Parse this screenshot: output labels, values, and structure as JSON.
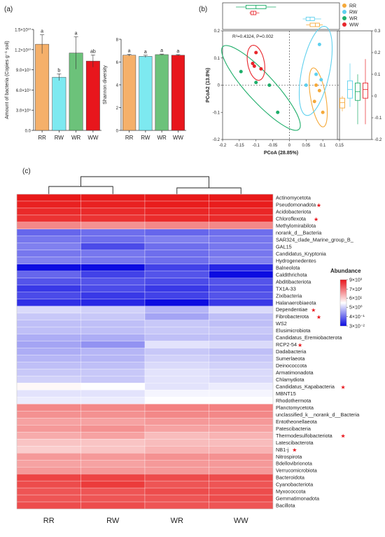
{
  "chart_data": [
    {
      "panel_label": "(a)",
      "type": "bar",
      "categories": [
        "RR",
        "RW",
        "WR",
        "WW"
      ],
      "values": [
        12800000000.0,
        7900000000.0,
        11500000000.0,
        10300000000.0
      ],
      "errors": [
        1400000000.0,
        500000000.0,
        2400000000.0,
        900000000.0
      ],
      "letters": [
        "a",
        "b",
        "a",
        "ab"
      ],
      "colors": [
        "#f5b06a",
        "#7de9f0",
        "#6cc27a",
        "#e8161c"
      ],
      "ylabel": "Amount of bacteria (Copies g⁻¹ soil)",
      "ylim": [
        0,
        15000000000.0
      ],
      "yticks": [
        "0.0",
        "3.0×10⁹",
        "6.0×10⁹",
        "9.0×10⁹",
        "1.2×10¹⁰",
        "1.5×10¹⁰"
      ]
    },
    {
      "type": "bar",
      "categories": [
        "RR",
        "RW",
        "WR",
        "WW"
      ],
      "values": [
        6.6,
        6.5,
        6.65,
        6.6
      ],
      "errors": [
        0.08,
        0.1,
        0.05,
        0.05
      ],
      "letters": [
        "a",
        "a",
        "a",
        "a"
      ],
      "colors": [
        "#f5b06a",
        "#7de9f0",
        "#6cc27a",
        "#e8161c"
      ],
      "ylabel": "Shannon diversity",
      "ylim": [
        0,
        8
      ],
      "yticks": [
        "0",
        "2",
        "4",
        "6",
        "8"
      ]
    },
    {
      "panel_label": "(b)",
      "type": "scatter",
      "xlabel": "PCoA (28.85%)",
      "ylabel": "PCoA2 (13.8%)",
      "xlim": [
        -0.2,
        0.15
      ],
      "ylim": [
        -0.2,
        0.2
      ],
      "xticks": [
        "-0.2",
        "-0.15",
        "-0.1",
        "-0.05",
        "0",
        "0.05",
        "0.1",
        "0.15"
      ],
      "yticks": [
        "-0.2",
        "-0.1",
        "0",
        "0.1",
        "0.2"
      ],
      "annotation": "R²=0.4324, P=0.002",
      "legend": [
        {
          "name": "RR",
          "color": "#f5a93a"
        },
        {
          "name": "RW",
          "color": "#5fd0ee"
        },
        {
          "name": "WR",
          "color": "#1fae6a"
        },
        {
          "name": "WW",
          "color": "#e8262c"
        }
      ],
      "series": [
        {
          "name": "RR",
          "color": "#f5a93a",
          "points": [
            [
              0.075,
              -0.06
            ],
            [
              0.08,
              0.0
            ],
            [
              0.09,
              -0.02
            ],
            [
              0.1,
              -0.1
            ]
          ]
        },
        {
          "name": "RW",
          "color": "#5fd0ee",
          "points": [
            [
              0.05,
              0.0
            ],
            [
              0.08,
              0.04
            ],
            [
              0.09,
              0.15
            ],
            [
              0.095,
              0.02
            ]
          ]
        },
        {
          "name": "WR",
          "color": "#1fae6a",
          "points": [
            [
              -0.145,
              0.05
            ],
            [
              -0.1,
              0.01
            ],
            [
              -0.06,
              0.0
            ],
            [
              -0.035,
              -0.1
            ]
          ]
        },
        {
          "name": "WW",
          "color": "#e8262c",
          "points": [
            [
              -0.11,
              0.08
            ],
            [
              -0.105,
              0.07
            ],
            [
              -0.1,
              0.12
            ],
            [
              -0.085,
              0.06
            ]
          ]
        }
      ],
      "top_box_ylim": [
        -0.2,
        0.15
      ],
      "top_boxes": [
        {
          "name": "RR",
          "color": "#f5a93a",
          "q1": 0.062,
          "median": 0.078,
          "q3": 0.09,
          "min": 0.05,
          "max": 0.1
        },
        {
          "name": "RW",
          "color": "#5fd0ee",
          "q1": 0.05,
          "median": 0.062,
          "q3": 0.075,
          "min": 0.04,
          "max": 0.095
        },
        {
          "name": "WR",
          "color": "#1fae6a",
          "q1": -0.13,
          "median": -0.1,
          "q3": -0.07,
          "min": -0.16,
          "max": -0.04
        },
        {
          "name": "WW",
          "color": "#e8262c",
          "q1": -0.115,
          "median": -0.108,
          "q3": -0.1,
          "min": -0.12,
          "max": -0.09
        }
      ],
      "right_box_ylim": [
        -0.2,
        0.3
      ],
      "right_boxes_yticks": [
        "-0.2",
        "-0.1",
        "0",
        "0.1",
        "0.2",
        "0.3"
      ],
      "right_boxes": [
        {
          "name": "RR",
          "color": "#f5a93a",
          "q1": -0.055,
          "median": -0.03,
          "q3": -0.01,
          "min": -0.07,
          "max": 0.0
        },
        {
          "name": "RW",
          "color": "#5fd0ee",
          "q1": -0.01,
          "median": 0.03,
          "q3": 0.07,
          "min": -0.05,
          "max": 0.15
        },
        {
          "name": "WR",
          "color": "#1fae6a",
          "q1": -0.02,
          "median": 0.02,
          "q3": 0.06,
          "min": -0.13,
          "max": 0.1
        },
        {
          "name": "WW",
          "color": "#e8262c",
          "q1": -0.01,
          "median": 0.03,
          "q3": 0.06,
          "min": -0.13,
          "max": 0.17
        }
      ]
    },
    {
      "panel_label": "(c)",
      "type": "heatmap",
      "columns": [
        "RR",
        "RW",
        "WR",
        "WW"
      ],
      "legend_title": "Abundance",
      "legend_ticks": [
        "9×10³",
        "7×10²",
        "6×10¹",
        "5×10⁰",
        "4×10⁻¹",
        "3×10⁻²"
      ],
      "legend_ticks_log10": [
        3.954,
        2.845,
        1.778,
        0.699,
        -0.398,
        -1.523
      ],
      "rows": [
        {
          "label": "Actinomycetota",
          "star": false,
          "values": [
            3.9,
            3.9,
            3.9,
            3.9
          ]
        },
        {
          "label": "Pseudomonadota",
          "star": true,
          "values": [
            3.8,
            3.8,
            3.85,
            3.85
          ]
        },
        {
          "label": "Acidobacteriota",
          "star": false,
          "values": [
            3.7,
            3.7,
            3.75,
            3.75
          ]
        },
        {
          "label": "Chloroflexota",
          "star": true,
          "values": [
            3.6,
            3.6,
            3.7,
            3.7
          ]
        },
        {
          "label": "Methylomirabilota",
          "star": false,
          "values": [
            2.6,
            2.5,
            2.6,
            2.6
          ]
        },
        {
          "label": "norank_d__Bacteria",
          "star": false,
          "values": [
            -0.5,
            -0.4,
            -0.5,
            -0.4
          ]
        },
        {
          "label": "SAR324_clade_Marine_group_B_",
          "star": false,
          "values": [
            -0.3,
            -0.4,
            -0.2,
            -0.3
          ]
        },
        {
          "label": "GAL15",
          "star": false,
          "values": [
            -0.2,
            -0.8,
            -0.4,
            -0.3
          ]
        },
        {
          "label": "Candidatus_Kryptonia",
          "star": false,
          "values": [
            -0.3,
            -0.3,
            -0.4,
            -0.3
          ]
        },
        {
          "label": "Hydrogenedentes",
          "star": false,
          "values": [
            -0.2,
            -0.3,
            -0.4,
            -0.2
          ]
        },
        {
          "label": "Balneolota",
          "star": false,
          "values": [
            -1.5,
            -1.5,
            -0.9,
            -1.2
          ]
        },
        {
          "label": "Caldithrichota",
          "star": false,
          "values": [
            -0.5,
            -0.9,
            -0.7,
            -1.5
          ]
        },
        {
          "label": "Abditibacteriota",
          "star": false,
          "values": [
            -0.7,
            -0.7,
            -0.8,
            -0.7
          ]
        },
        {
          "label": "TX1A-33",
          "star": false,
          "values": [
            -1.0,
            -0.8,
            -1.0,
            -0.8
          ]
        },
        {
          "label": "Zixibacteria",
          "star": false,
          "values": [
            -0.8,
            -1.0,
            -0.9,
            -0.7
          ]
        },
        {
          "label": "Halanaerobiaeota",
          "star": false,
          "values": [
            -1.1,
            -1.2,
            -1.5,
            -1.0
          ]
        },
        {
          "label": "Dependentiae",
          "star": true,
          "values": [
            0.8,
            0.7,
            0.4,
            0.8
          ]
        },
        {
          "label": "Fibrobacterota",
          "star": true,
          "values": [
            0.6,
            0.6,
            0.2,
            0.5
          ]
        },
        {
          "label": "WS2",
          "star": false,
          "values": [
            0.5,
            0.5,
            0.6,
            0.5
          ]
        },
        {
          "label": "Elusimicrobiota",
          "star": false,
          "values": [
            0.5,
            0.5,
            0.6,
            0.6
          ]
        },
        {
          "label": "Candidatus_Eremiobacterota",
          "star": false,
          "values": [
            0.3,
            0.3,
            0.5,
            0.5
          ]
        },
        {
          "label": "RCP2-54",
          "star": true,
          "values": [
            0.2,
            0.0,
            0.9,
            0.8
          ]
        },
        {
          "label": "Dadabacteria",
          "star": false,
          "values": [
            0.3,
            0.4,
            0.6,
            0.5
          ]
        },
        {
          "label": "Sumerlaeota",
          "star": false,
          "values": [
            0.4,
            0.4,
            0.7,
            0.6
          ]
        },
        {
          "label": "Deinococcota",
          "star": false,
          "values": [
            0.5,
            0.5,
            0.8,
            0.7
          ]
        },
        {
          "label": "Armatimonadota",
          "star": false,
          "values": [
            0.6,
            0.6,
            0.9,
            0.8
          ]
        },
        {
          "label": "Chlamydiota",
          "star": false,
          "values": [
            0.7,
            0.6,
            0.9,
            0.8
          ]
        },
        {
          "label": "Candidatus_Kapabacteria",
          "star": true,
          "values": [
            1.3,
            1.2,
            0.9,
            1.0
          ]
        },
        {
          "label": "MBNT15",
          "star": false,
          "values": [
            0.9,
            0.9,
            1.1,
            1.1
          ]
        },
        {
          "label": "Rhodothermota",
          "star": false,
          "values": [
            1.0,
            1.0,
            1.2,
            1.2
          ]
        },
        {
          "label": "Planctomycetota",
          "star": false,
          "values": [
            2.6,
            2.6,
            2.7,
            2.7
          ]
        },
        {
          "label": "unclassified_k__norank_d__Bacteria",
          "star": false,
          "values": [
            2.5,
            2.5,
            2.6,
            2.6
          ]
        },
        {
          "label": "Entotheonellaeota",
          "star": false,
          "values": [
            2.3,
            2.3,
            2.4,
            2.4
          ]
        },
        {
          "label": "Patescibacteria",
          "star": false,
          "values": [
            2.4,
            2.5,
            2.3,
            2.3
          ]
        },
        {
          "label": "Thermodesulfobacteriota",
          "star": true,
          "values": [
            2.2,
            2.3,
            2.0,
            2.1
          ]
        },
        {
          "label": "Latescibacterota",
          "star": false,
          "values": [
            1.9,
            1.9,
            2.0,
            2.0
          ]
        },
        {
          "label": "NB1-j",
          "star": true,
          "values": [
            1.8,
            1.9,
            2.1,
            2.1
          ]
        },
        {
          "label": "Nitrospirota",
          "star": false,
          "values": [
            2.4,
            2.4,
            2.5,
            2.5
          ]
        },
        {
          "label": "Bdellovibrionota",
          "star": false,
          "values": [
            2.3,
            2.3,
            2.4,
            2.4
          ]
        },
        {
          "label": "Verrucomicrobiota",
          "star": false,
          "values": [
            2.4,
            2.4,
            2.4,
            2.4
          ]
        },
        {
          "label": "Bacteroidota",
          "star": false,
          "values": [
            3.4,
            3.4,
            3.3,
            3.3
          ]
        },
        {
          "label": "Cyanobacteriota",
          "star": false,
          "values": [
            3.3,
            3.5,
            3.2,
            3.2
          ]
        },
        {
          "label": "Myxococcota",
          "star": false,
          "values": [
            3.2,
            3.2,
            3.3,
            3.3
          ]
        },
        {
          "label": "Gemmatimonadota",
          "star": false,
          "values": [
            3.2,
            3.2,
            3.2,
            3.3
          ]
        },
        {
          "label": "Bacillota",
          "star": false,
          "values": [
            3.3,
            3.3,
            3.2,
            3.2
          ]
        }
      ]
    }
  ]
}
